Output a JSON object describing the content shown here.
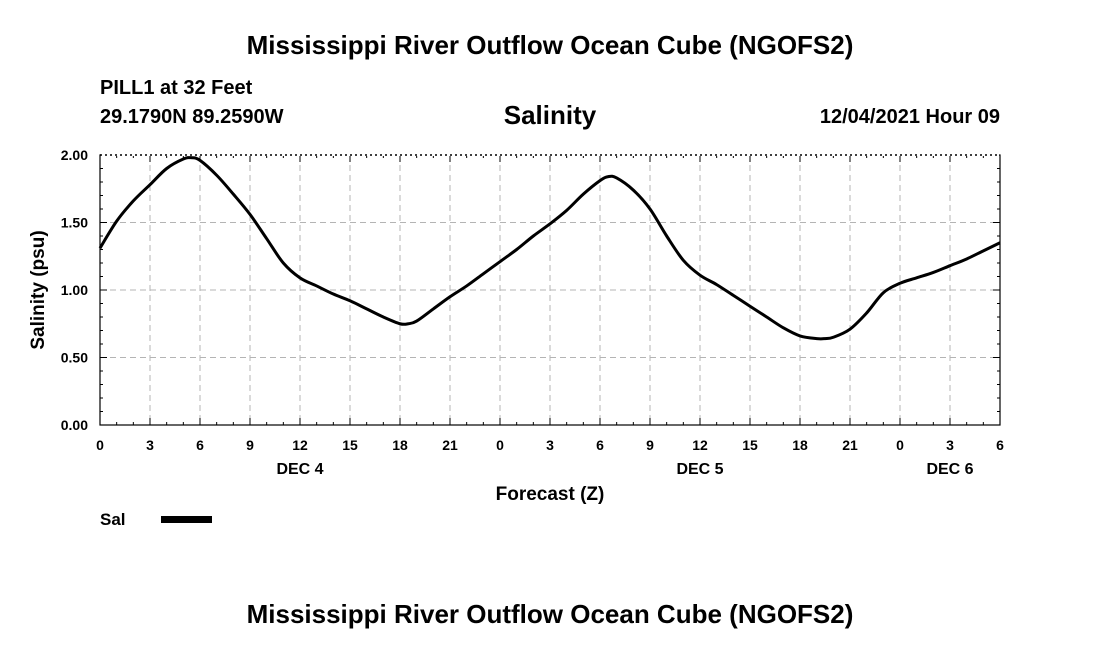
{
  "header": {
    "title": "Mississippi River Outflow Ocean Cube (NGOFS2)",
    "station": "PILL1 at 32 Feet",
    "coords": "29.1790N  89.2590W",
    "variable": "Salinity",
    "datetime": "12/04/2021 Hour 09"
  },
  "footer": {
    "title": "Mississippi River Outflow Ocean Cube (NGOFS2)"
  },
  "legend": {
    "label": "Sal"
  },
  "colors": {
    "line": "#000000",
    "grid": "#b4b4b4",
    "frame": "#000000"
  },
  "chart_data": {
    "type": "line",
    "title": "Salinity",
    "xlabel": "Forecast (Z)",
    "ylabel": "Salinity (psu)",
    "xlim": [
      0,
      54
    ],
    "ylim": [
      0,
      2
    ],
    "yticks": [
      0,
      0.5,
      1.0,
      1.5,
      2.0
    ],
    "ytick_labels": [
      "0.00",
      "0.50",
      "1.00",
      "1.50",
      "2.00"
    ],
    "xticks": [
      0,
      3,
      6,
      9,
      12,
      15,
      18,
      21,
      24,
      27,
      30,
      33,
      36,
      39,
      42,
      45,
      48,
      51,
      54
    ],
    "xtick_labels": [
      "0",
      "3",
      "6",
      "9",
      "12",
      "15",
      "18",
      "21",
      "0",
      "3",
      "6",
      "9",
      "12",
      "15",
      "18",
      "21",
      "0",
      "3",
      "6"
    ],
    "day_labels": [
      {
        "x": 12,
        "label": "DEC 4"
      },
      {
        "x": 36,
        "label": "DEC 5"
      },
      {
        "x": 51,
        "label": "DEC 6"
      }
    ],
    "grid": true,
    "series": [
      {
        "name": "Sal",
        "x": [
          0,
          1,
          2,
          3,
          4,
          5,
          5.5,
          6,
          7,
          8,
          9,
          10,
          11,
          12,
          13,
          14,
          15,
          16,
          17,
          18,
          18.5,
          19,
          20,
          21,
          22,
          23,
          24,
          25,
          26,
          27,
          28,
          29,
          30,
          30.5,
          31,
          32,
          33,
          34,
          35,
          36,
          37,
          38,
          39,
          40,
          41,
          42,
          43,
          43.5,
          44,
          45,
          46,
          47,
          48,
          49,
          50,
          51,
          52,
          53,
          54
        ],
        "y": [
          1.31,
          1.51,
          1.66,
          1.78,
          1.9,
          1.97,
          1.98,
          1.96,
          1.85,
          1.71,
          1.56,
          1.38,
          1.2,
          1.09,
          1.03,
          0.97,
          0.92,
          0.86,
          0.8,
          0.75,
          0.75,
          0.77,
          0.86,
          0.95,
          1.03,
          1.12,
          1.21,
          1.3,
          1.4,
          1.49,
          1.59,
          1.71,
          1.81,
          1.84,
          1.83,
          1.74,
          1.6,
          1.4,
          1.22,
          1.11,
          1.04,
          0.96,
          0.88,
          0.8,
          0.72,
          0.66,
          0.64,
          0.64,
          0.65,
          0.71,
          0.83,
          0.98,
          1.05,
          1.09,
          1.13,
          1.18,
          1.23,
          1.29,
          1.35
        ]
      }
    ]
  }
}
